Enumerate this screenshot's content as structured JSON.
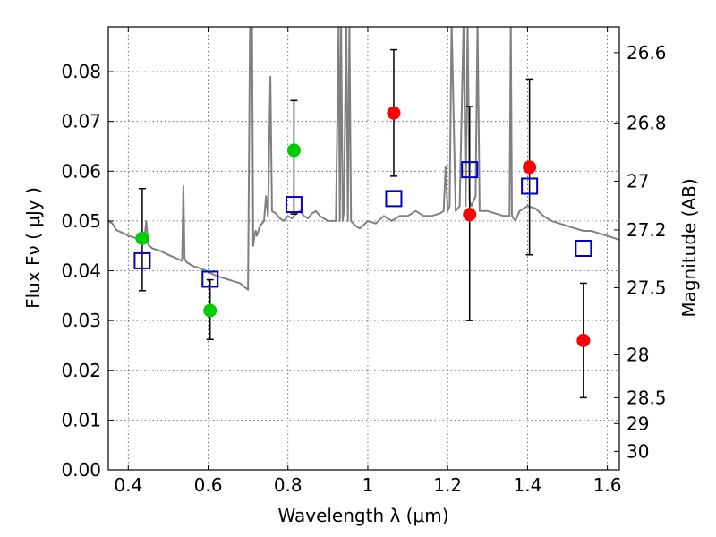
{
  "chart_data": {
    "type": "scatter",
    "title": "",
    "xlabel": "Wavelength  λ (μm)",
    "ylabel": "Flux  Fν  ( μJy )",
    "ylabel_right": "Magnitude (AB)",
    "xlim": [
      0.35,
      1.63
    ],
    "ylim": [
      0.0,
      0.089
    ],
    "grid": true,
    "x_ticks": [
      0.4,
      0.6,
      0.8,
      1.0,
      1.2,
      1.4,
      1.6
    ],
    "x_tick_labels": [
      "0.4",
      "0.6",
      "0.8",
      "1",
      "1.2",
      "1.4",
      "1.6"
    ],
    "y_ticks": [
      0.0,
      0.01,
      0.02,
      0.03,
      0.04,
      0.05,
      0.06,
      0.07,
      0.08
    ],
    "y_tick_labels": [
      "0.00",
      "0.01",
      "0.02",
      "0.03",
      "0.04",
      "0.05",
      "0.06",
      "0.07",
      "0.08"
    ],
    "right_ticks": [
      {
        "label": "26.6",
        "flux": 0.0838
      },
      {
        "label": "26.8",
        "flux": 0.0697
      },
      {
        "label": "27",
        "flux": 0.058
      },
      {
        "label": "27.2",
        "flux": 0.0482
      },
      {
        "label": "27.5",
        "flux": 0.0366
      },
      {
        "label": "28",
        "flux": 0.0231
      },
      {
        "label": "28.5",
        "flux": 0.0145
      },
      {
        "label": "29",
        "flux": 0.0093
      },
      {
        "label": "30",
        "flux": 0.0037
      }
    ],
    "series": [
      {
        "name": "model spectrum",
        "type": "line",
        "color": "#808080",
        "x": [
          0.35,
          0.36,
          0.37,
          0.38,
          0.39,
          0.4,
          0.41,
          0.42,
          0.43,
          0.44,
          0.445,
          0.45,
          0.46,
          0.48,
          0.5,
          0.52,
          0.535,
          0.538,
          0.541,
          0.545,
          0.56,
          0.58,
          0.6,
          0.62,
          0.64,
          0.66,
          0.68,
          0.69,
          0.7,
          0.705,
          0.71,
          0.713,
          0.716,
          0.719,
          0.722,
          0.73,
          0.74,
          0.745,
          0.75,
          0.756,
          0.76,
          0.77,
          0.78,
          0.79,
          0.8,
          0.81,
          0.82,
          0.83,
          0.84,
          0.85,
          0.86,
          0.87,
          0.88,
          0.89,
          0.9,
          0.91,
          0.92,
          0.927,
          0.93,
          0.933,
          0.937,
          0.94,
          0.946,
          0.95,
          0.954,
          0.958,
          0.97,
          0.98,
          1.0,
          1.02,
          1.04,
          1.06,
          1.08,
          1.1,
          1.12,
          1.14,
          1.16,
          1.18,
          1.19,
          1.195,
          1.2,
          1.205,
          1.21,
          1.22,
          1.23,
          1.24,
          1.245,
          1.25,
          1.255,
          1.26,
          1.27,
          1.275,
          1.28,
          1.29,
          1.3,
          1.32,
          1.34,
          1.355,
          1.358,
          1.361,
          1.365,
          1.37,
          1.38,
          1.4,
          1.42,
          1.44,
          1.46,
          1.48,
          1.5,
          1.52,
          1.54,
          1.56,
          1.58,
          1.6,
          1.62,
          1.63
        ],
        "y": [
          0.05,
          0.0495,
          0.0482,
          0.0478,
          0.0475,
          0.047,
          0.0468,
          0.0465,
          0.0462,
          0.046,
          0.05,
          0.0452,
          0.0445,
          0.044,
          0.0432,
          0.0425,
          0.042,
          0.057,
          0.0425,
          0.0418,
          0.041,
          0.0405,
          0.0398,
          0.039,
          0.0385,
          0.038,
          0.0375,
          0.0368,
          0.0362,
          0.09,
          0.09,
          0.045,
          0.047,
          0.048,
          0.047,
          0.049,
          0.05,
          0.055,
          0.051,
          0.079,
          0.052,
          0.0515,
          0.0505,
          0.05,
          0.051,
          0.0505,
          0.0515,
          0.052,
          0.051,
          0.0505,
          0.0515,
          0.052,
          0.051,
          0.0505,
          0.05,
          0.05,
          0.05,
          0.09,
          0.05,
          0.09,
          0.05,
          0.052,
          0.09,
          0.05,
          0.09,
          0.05,
          0.049,
          0.0485,
          0.05,
          0.0495,
          0.051,
          0.05,
          0.051,
          0.051,
          0.052,
          0.051,
          0.051,
          0.0515,
          0.052,
          0.061,
          0.052,
          0.053,
          0.09,
          0.052,
          0.053,
          0.09,
          0.053,
          0.09,
          0.054,
          0.053,
          0.055,
          0.09,
          0.052,
          0.052,
          0.052,
          0.0515,
          0.051,
          0.051,
          0.09,
          0.051,
          0.0505,
          0.05,
          0.052,
          0.053,
          0.0525,
          0.051,
          0.05,
          0.0495,
          0.049,
          0.0485,
          0.048,
          0.048,
          0.0475,
          0.047,
          0.0465,
          0.0462
        ]
      },
      {
        "name": "observed (green)",
        "type": "points",
        "marker": "circle",
        "color": "#00cc00",
        "x": [
          0.435,
          0.605,
          0.815
        ],
        "y": [
          0.0465,
          0.032,
          0.0642
        ],
        "yerr_low": [
          0.0105,
          0.0058,
          0.0128
        ],
        "yerr_high": [
          0.01,
          0.0062,
          0.01
        ]
      },
      {
        "name": "observed (red)",
        "type": "points",
        "marker": "circle",
        "color": "#ff0000",
        "x": [
          1.065,
          1.255,
          1.405,
          1.54
        ],
        "y": [
          0.0717,
          0.0513,
          0.0608,
          0.026
        ],
        "yerr_low": [
          0.0127,
          0.0213,
          0.0176,
          0.0115
        ],
        "yerr_high": [
          0.0127,
          0.0217,
          0.0177,
          0.0115
        ]
      },
      {
        "name": "model bandpass",
        "type": "points",
        "marker": "open-square",
        "color": "#0000cc",
        "x": [
          0.435,
          0.605,
          0.815,
          1.065,
          1.255,
          1.405,
          1.54
        ],
        "y": [
          0.042,
          0.0383,
          0.0533,
          0.0545,
          0.0603,
          0.057,
          0.0445
        ]
      }
    ]
  }
}
